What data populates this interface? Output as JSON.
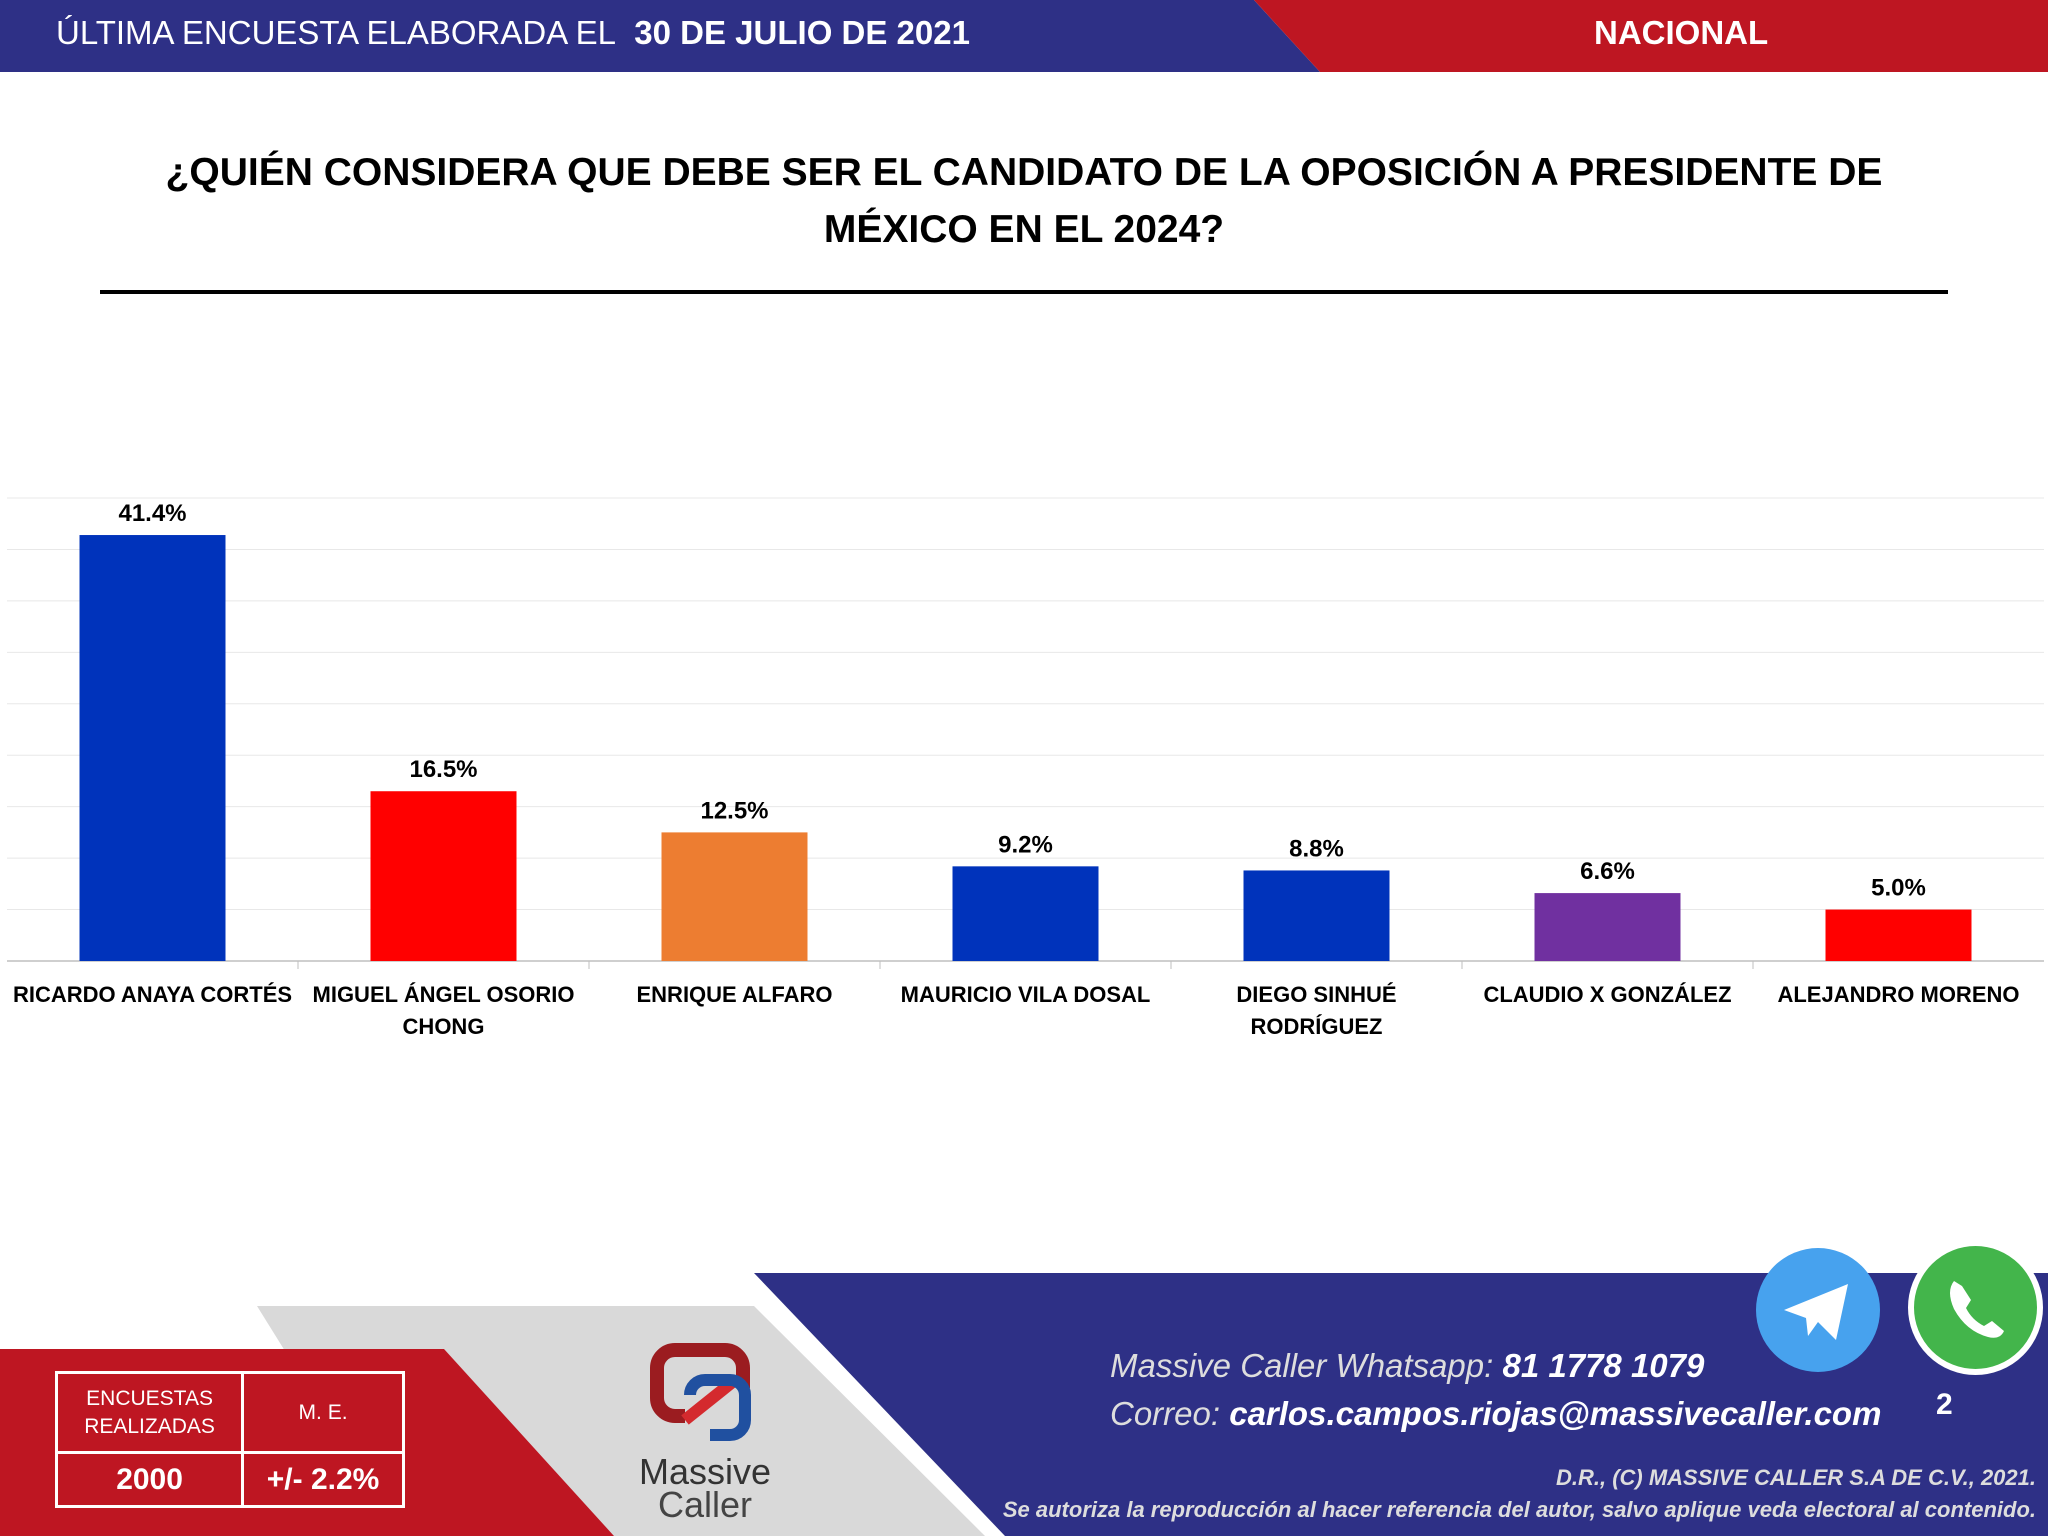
{
  "header": {
    "prefix": "ÚLTIMA ENCUESTA ELABORADA EL",
    "date": "30 DE JULIO DE 2021",
    "region": "NACIONAL"
  },
  "title_line1": "¿QUIÉN CONSIDERA QUE DEBE SER EL CANDIDATO DE LA OPOSICIÓN A PRESIDENTE DE",
  "title_line2": "MÉXICO EN EL 2024?",
  "chart_data": {
    "type": "bar",
    "title": "¿QUIÉN CONSIDERA QUE DEBE SER EL CANDIDATO DE LA OPOSICIÓN A PRESIDENTE DE MÉXICO EN EL 2024?",
    "categories": [
      [
        "RICARDO ANAYA CORTÉS"
      ],
      [
        "MIGUEL ÁNGEL OSORIO",
        "CHONG"
      ],
      [
        "ENRIQUE ALFARO"
      ],
      [
        "MAURICIO VILA DOSAL"
      ],
      [
        "DIEGO SINHUÉ",
        "RODRÍGUEZ"
      ],
      [
        "CLAUDIO X GONZÁLEZ"
      ],
      [
        "ALEJANDRO MORENO"
      ]
    ],
    "values": [
      41.4,
      16.5,
      12.5,
      9.2,
      8.8,
      6.6,
      5.0
    ],
    "labels": [
      "41.4%",
      "16.5%",
      "12.5%",
      "9.2%",
      "8.8%",
      "6.6%",
      "5.0%"
    ],
    "colors": [
      "#0033bb",
      "#ff0000",
      "#ed7d31",
      "#0033bb",
      "#0033bb",
      "#7030a0",
      "#ff0000"
    ],
    "ylim": [
      0,
      45
    ],
    "grid": true
  },
  "stats": {
    "surveys_label_1": "ENCUESTAS",
    "surveys_label_2": "REALIZADAS",
    "me_label": "M. E.",
    "surveys_value": "2000",
    "me_value": "+/- 2.2%"
  },
  "logo": {
    "line1": "Massive",
    "line2": "Caller"
  },
  "contact": {
    "whatsapp_label": "Massive Caller Whatsapp:",
    "whatsapp_number": "81 1778 1079",
    "email_label": "Correo:",
    "email": "carlos.campos.riojas@massivecaller.com"
  },
  "page_number": "2",
  "legal": {
    "line1": "D.R., (C) MASSIVE CALLER S.A DE C.V., 2021.",
    "line2": "Se autoriza la reproducción al hacer referencia del autor, salvo aplique veda electoral al contenido."
  },
  "icons": [
    "telegram-icon",
    "whatsapp-icon"
  ]
}
